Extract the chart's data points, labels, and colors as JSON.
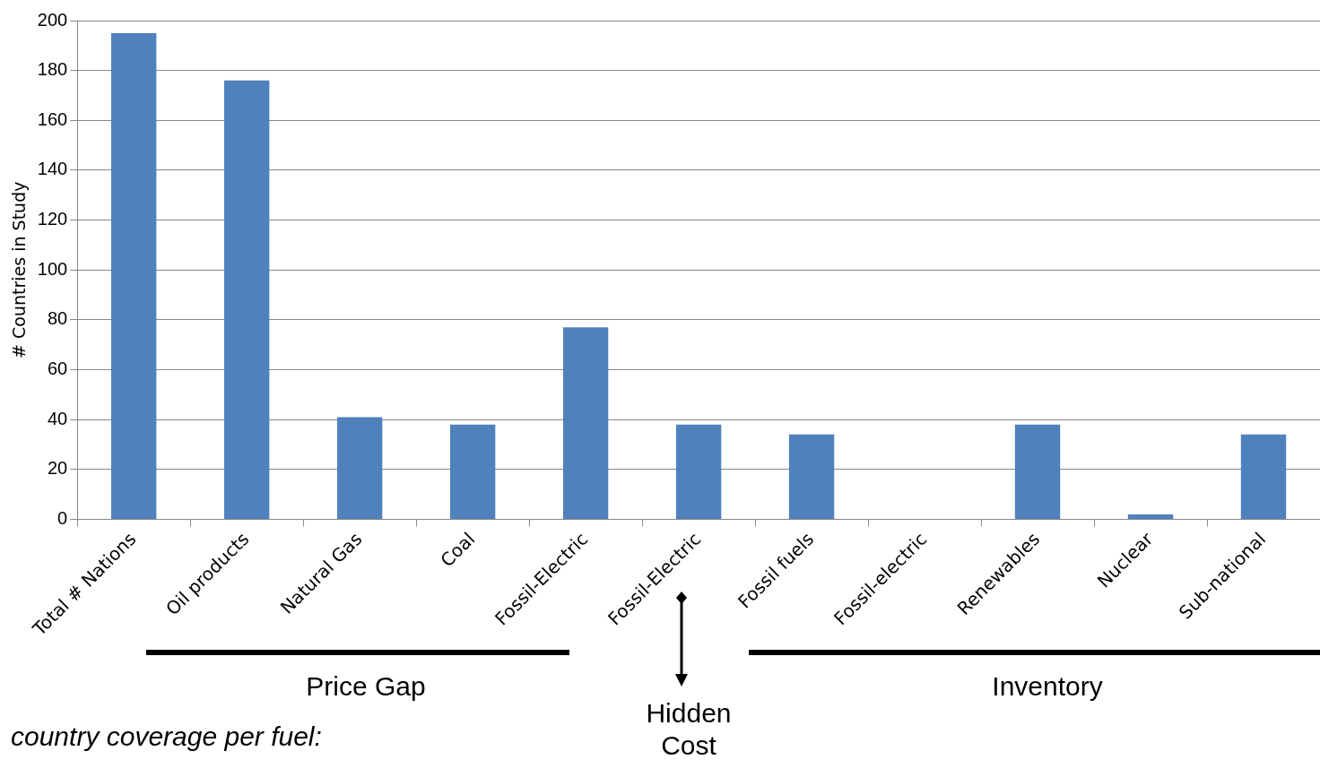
{
  "chart_data": {
    "type": "bar",
    "ylabel": "# Countries in Study",
    "categories": [
      "Total # Nations",
      "Oil products",
      "Natural Gas",
      "Coal",
      "Fossil-Electric",
      "Fossil-Electric",
      "Fossil fuels",
      "Fossil-electric",
      "Renewables",
      "Nuclear",
      "Sub-national"
    ],
    "values": [
      195,
      176,
      41,
      38,
      77,
      38,
      34,
      0,
      38,
      2,
      34
    ],
    "color": "#4f81bd",
    "ylim": [
      0,
      200
    ],
    "yticks": [
      0,
      20,
      40,
      60,
      80,
      100,
      120,
      140,
      160,
      180,
      200
    ],
    "grid": "y",
    "annotations": [
      "Price Gap",
      "Hidden Cost",
      "Inventory",
      "country coverage per fuel:"
    ]
  }
}
